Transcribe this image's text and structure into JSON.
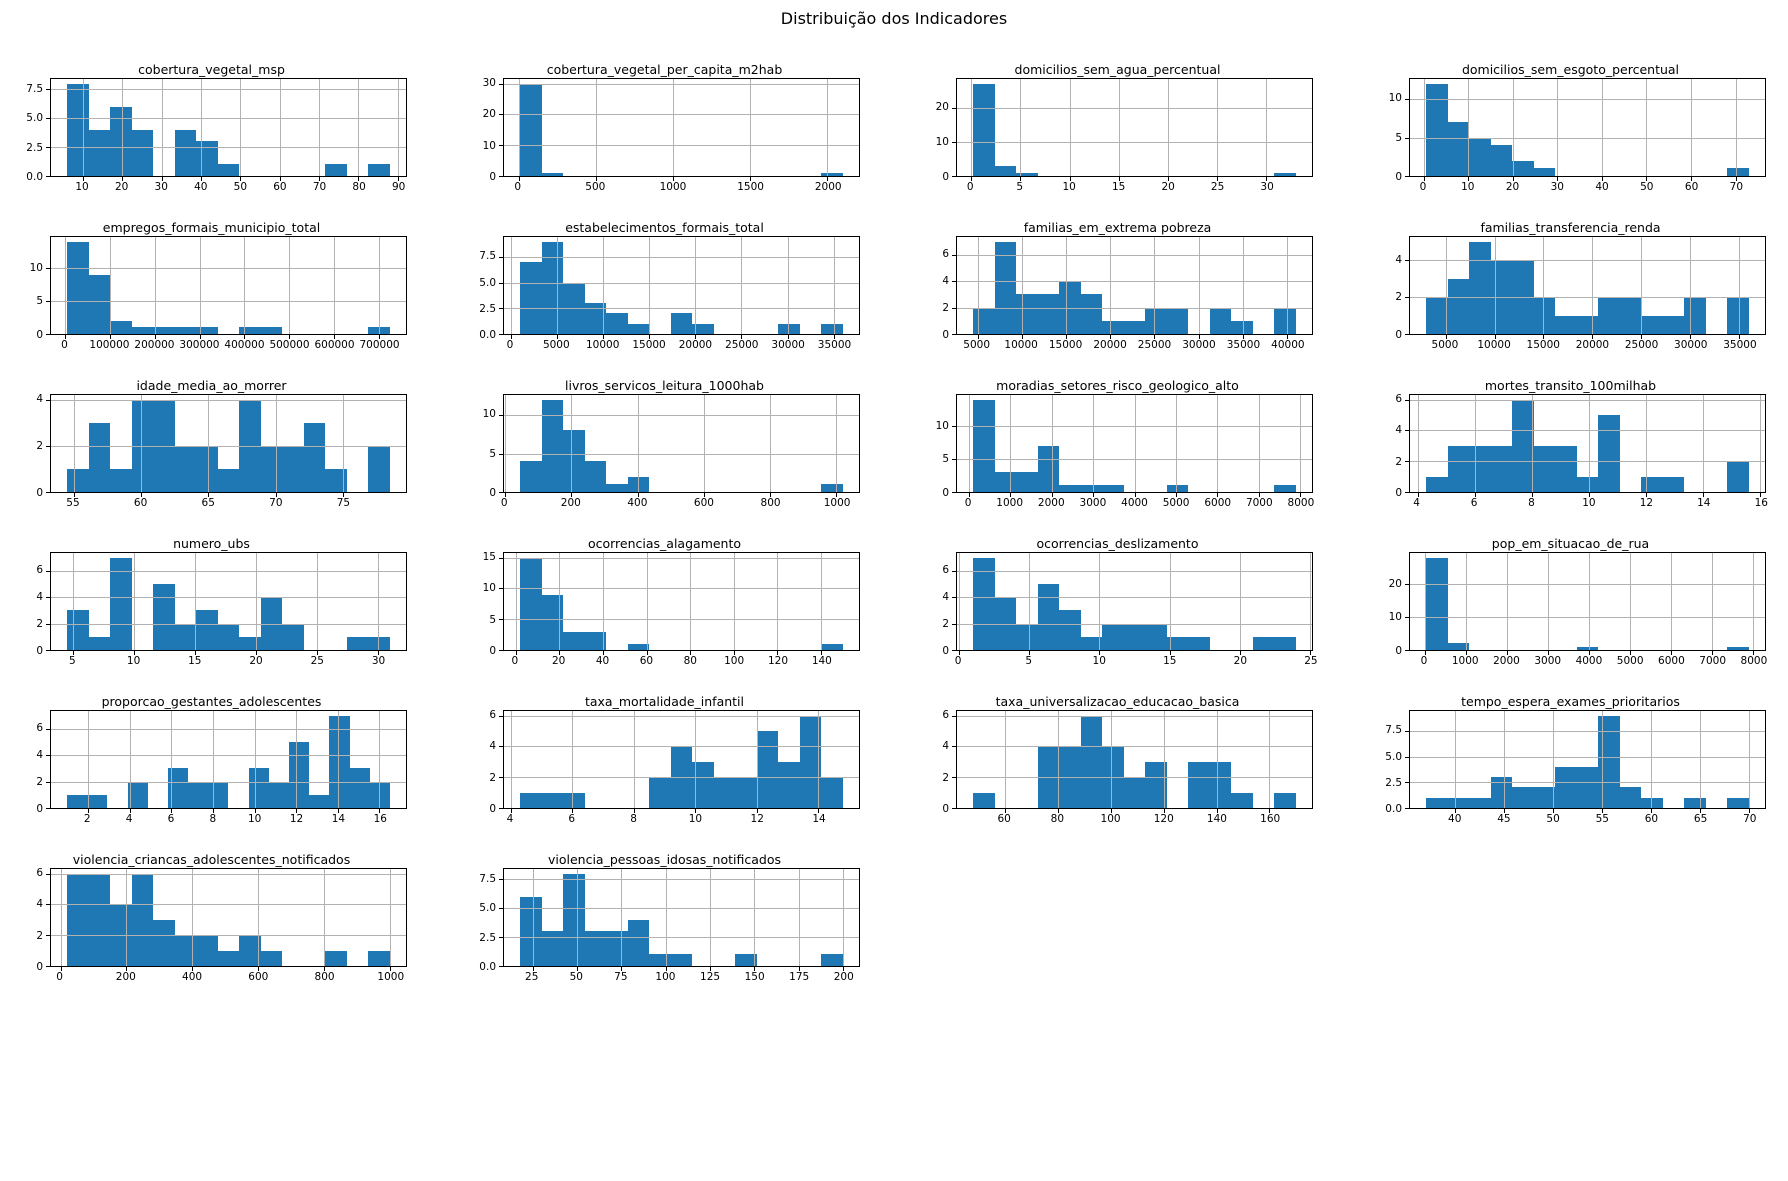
{
  "figure_title": "Distribuição dos Indicadores",
  "colors": {
    "bar": "#1f77b4",
    "grid": "#b2b2b2",
    "spine": "#000000",
    "background": "#ffffff"
  },
  "chart_data": [
    {
      "type": "bar",
      "subtype": "histogram",
      "title": "cobertura_vegetal_msp",
      "xrange": [
        6,
        88
      ],
      "xticks": [
        "10",
        "20",
        "30",
        "40",
        "50",
        "60",
        "70",
        "80",
        "90"
      ],
      "yticks": [
        "0.0",
        "2.5",
        "5.0",
        "7.5"
      ],
      "ymax": 8,
      "values": [
        8,
        4,
        6,
        4,
        0,
        4,
        3,
        1,
        0,
        0,
        0,
        0,
        1,
        0,
        1
      ]
    },
    {
      "type": "bar",
      "subtype": "histogram",
      "title": "cobertura_vegetal_per_capita_m2hab",
      "xrange": [
        10,
        2100
      ],
      "xticks": [
        "0",
        "500",
        "1000",
        "1500",
        "2000"
      ],
      "yticks": [
        "0",
        "10",
        "20",
        "30"
      ],
      "ymax": 30,
      "values": [
        30,
        1,
        0,
        0,
        0,
        0,
        0,
        0,
        0,
        0,
        0,
        0,
        0,
        0,
        1
      ]
    },
    {
      "type": "bar",
      "subtype": "histogram",
      "title": "domicilios_sem_agua_percentual",
      "xrange": [
        0.2,
        33
      ],
      "xticks": [
        "0",
        "5",
        "10",
        "15",
        "20",
        "25",
        "30"
      ],
      "yticks": [
        "0",
        "10",
        "20"
      ],
      "ymax": 27,
      "values": [
        27,
        3,
        1,
        0,
        0,
        0,
        0,
        0,
        0,
        0,
        0,
        0,
        0,
        0,
        1
      ]
    },
    {
      "type": "bar",
      "subtype": "histogram",
      "title": "domicilios_sem_esgoto_percentual",
      "xrange": [
        0.5,
        73
      ],
      "xticks": [
        "0",
        "10",
        "20",
        "30",
        "40",
        "50",
        "60",
        "70"
      ],
      "yticks": [
        "0",
        "5",
        "10"
      ],
      "ymax": 12,
      "values": [
        12,
        7,
        5,
        4,
        2,
        1,
        0,
        0,
        0,
        0,
        0,
        0,
        0,
        0,
        1
      ]
    },
    {
      "type": "bar",
      "subtype": "histogram",
      "title": "empregos_formais_municipio_total",
      "xrange": [
        4000,
        725000
      ],
      "xticks": [
        "0",
        "100000",
        "200000",
        "300000",
        "400000",
        "500000",
        "600000",
        "700000",
        "800000"
      ],
      "yticks": [
        "0",
        "5",
        "10"
      ],
      "ymax": 14,
      "values": [
        14,
        9,
        2,
        1,
        1,
        1,
        1,
        0,
        1,
        1,
        0,
        0,
        0,
        0,
        1
      ]
    },
    {
      "type": "bar",
      "subtype": "histogram",
      "title": "estabelecimentos_formais_total",
      "xrange": [
        1000,
        36000
      ],
      "xticks": [
        "0",
        "5000",
        "10000",
        "15000",
        "20000",
        "25000",
        "30000",
        "35000"
      ],
      "yticks": [
        "0.0",
        "2.5",
        "5.0",
        "7.5"
      ],
      "ymax": 9,
      "values": [
        7,
        9,
        5,
        3,
        2,
        1,
        0,
        2,
        1,
        0,
        0,
        0,
        1,
        0,
        1
      ]
    },
    {
      "type": "bar",
      "subtype": "histogram",
      "title": "familias_em_extrema pobreza",
      "xrange": [
        4500,
        41000
      ],
      "xticks": [
        "5000",
        "10000",
        "15000",
        "20000",
        "25000",
        "30000",
        "35000",
        "40000"
      ],
      "yticks": [
        "0",
        "2",
        "4",
        "6"
      ],
      "ymax": 7,
      "values": [
        2,
        7,
        3,
        3,
        4,
        3,
        1,
        1,
        2,
        2,
        0,
        2,
        1,
        0,
        2
      ]
    },
    {
      "type": "bar",
      "subtype": "histogram",
      "title": "familias_transferencia_renda",
      "xrange": [
        3000,
        36000
      ],
      "xticks": [
        "5000",
        "10000",
        "15000",
        "20000",
        "25000",
        "30000",
        "35000"
      ],
      "yticks": [
        "0",
        "2",
        "4"
      ],
      "ymax": 5,
      "values": [
        2,
        3,
        5,
        4,
        4,
        2,
        1,
        1,
        2,
        2,
        1,
        1,
        2,
        0,
        2
      ]
    },
    {
      "type": "bar",
      "subtype": "histogram",
      "title": "idade_media_ao_morrer",
      "xrange": [
        54.5,
        78.5
      ],
      "xticks": [
        "55",
        "60",
        "65",
        "70",
        "75"
      ],
      "yticks": [
        "0",
        "2",
        "4"
      ],
      "ymax": 4,
      "values": [
        1,
        3,
        1,
        4,
        4,
        2,
        2,
        1,
        4,
        2,
        2,
        3,
        1,
        0,
        2
      ]
    },
    {
      "type": "bar",
      "subtype": "histogram",
      "title": "livros_servicos_leitura_1000hab",
      "xrange": [
        45,
        1020
      ],
      "xticks": [
        "0",
        "200",
        "400",
        "600",
        "800",
        "1000"
      ],
      "yticks": [
        "0",
        "5",
        "10"
      ],
      "ymax": 12,
      "values": [
        4,
        12,
        8,
        4,
        1,
        2,
        0,
        0,
        0,
        0,
        0,
        0,
        0,
        0,
        1
      ]
    },
    {
      "type": "bar",
      "subtype": "histogram",
      "title": "moradias_setores_risco_geologico_alto",
      "xrange": [
        100,
        7900
      ],
      "xticks": [
        "0",
        "1000",
        "2000",
        "3000",
        "4000",
        "5000",
        "6000",
        "7000",
        "8000"
      ],
      "yticks": [
        "0",
        "5",
        "10"
      ],
      "ymax": 14,
      "values": [
        14,
        3,
        3,
        7,
        1,
        1,
        1,
        0,
        0,
        1,
        0,
        0,
        0,
        0,
        1
      ]
    },
    {
      "type": "bar",
      "subtype": "histogram",
      "title": "mortes_transito_100milhab",
      "xrange": [
        4.3,
        15.6
      ],
      "xticks": [
        "4",
        "6",
        "8",
        "10",
        "12",
        "14",
        "16"
      ],
      "yticks": [
        "0",
        "2",
        "4",
        "6"
      ],
      "ymax": 6,
      "values": [
        1,
        3,
        3,
        3,
        6,
        3,
        3,
        1,
        5,
        0,
        1,
        1,
        0,
        0,
        2
      ]
    },
    {
      "type": "bar",
      "subtype": "histogram",
      "title": "numero_ubs",
      "xrange": [
        4.5,
        31
      ],
      "xticks": [
        "5",
        "10",
        "15",
        "20",
        "25",
        "30"
      ],
      "yticks": [
        "0",
        "2",
        "4",
        "6"
      ],
      "ymax": 7,
      "values": [
        3,
        1,
        7,
        0,
        5,
        2,
        3,
        2,
        1,
        4,
        2,
        0,
        0,
        1,
        1
      ]
    },
    {
      "type": "bar",
      "subtype": "histogram",
      "title": "ocorrencias_alagamento",
      "xrange": [
        2,
        150
      ],
      "xticks": [
        "0",
        "20",
        "40",
        "60",
        "80",
        "100",
        "120",
        "140"
      ],
      "yticks": [
        "0",
        "5",
        "10",
        "15"
      ],
      "ymax": 15,
      "values": [
        15,
        9,
        3,
        3,
        0,
        1,
        0,
        0,
        0,
        0,
        0,
        0,
        0,
        0,
        1
      ]
    },
    {
      "type": "bar",
      "subtype": "histogram",
      "title": "ocorrencias_deslizamento",
      "xrange": [
        1,
        24
      ],
      "xticks": [
        "0",
        "5",
        "10",
        "15",
        "20",
        "25"
      ],
      "yticks": [
        "0",
        "2",
        "4",
        "6"
      ],
      "ymax": 7,
      "values": [
        7,
        4,
        2,
        5,
        3,
        1,
        2,
        2,
        2,
        1,
        1,
        0,
        0,
        1,
        1
      ]
    },
    {
      "type": "bar",
      "subtype": "histogram",
      "title": "pop_em_situacao_de_rua",
      "xrange": [
        30,
        7900
      ],
      "xticks": [
        "0",
        "1000",
        "2000",
        "3000",
        "4000",
        "5000",
        "6000",
        "7000",
        "8000"
      ],
      "yticks": [
        "0",
        "10",
        "20"
      ],
      "ymax": 28,
      "values": [
        28,
        2,
        0,
        0,
        0,
        0,
        0,
        1,
        0,
        0,
        0,
        0,
        0,
        0,
        1
      ]
    },
    {
      "type": "bar",
      "subtype": "histogram",
      "title": "proporcao_gestantes_adolescentes",
      "xrange": [
        1,
        16.5
      ],
      "xticks": [
        "2",
        "4",
        "6",
        "8",
        "10",
        "12",
        "14",
        "16"
      ],
      "yticks": [
        "0",
        "2",
        "4",
        "6"
      ],
      "ymax": 7,
      "values": [
        1,
        1,
        0,
        2,
        0,
        3,
        2,
        2,
        0,
        3,
        2,
        5,
        1,
        7,
        3,
        2
      ]
    },
    {
      "type": "bar",
      "subtype": "histogram",
      "title": "taxa_mortalidade_infantil",
      "xrange": [
        4.3,
        14.8
      ],
      "xticks": [
        "4",
        "6",
        "8",
        "10",
        "12",
        "14"
      ],
      "yticks": [
        "0",
        "2",
        "4",
        "6"
      ],
      "ymax": 6,
      "values": [
        1,
        1,
        1,
        0,
        0,
        0,
        2,
        4,
        3,
        2,
        2,
        5,
        3,
        6,
        2
      ]
    },
    {
      "type": "bar",
      "subtype": "histogram",
      "title": "taxa_universalizacao_educacao_basica",
      "xrange": [
        48,
        170
      ],
      "xticks": [
        "60",
        "80",
        "100",
        "120",
        "140",
        "160"
      ],
      "yticks": [
        "0",
        "2",
        "4",
        "6"
      ],
      "ymax": 6,
      "values": [
        1,
        0,
        0,
        4,
        4,
        6,
        4,
        2,
        3,
        0,
        3,
        3,
        1,
        0,
        1
      ]
    },
    {
      "type": "bar",
      "subtype": "histogram",
      "title": "tempo_espera_exames_prioritarios",
      "xrange": [
        37,
        70
      ],
      "xticks": [
        "40",
        "45",
        "50",
        "55",
        "60",
        "65",
        "70"
      ],
      "yticks": [
        "0.0",
        "2.5",
        "5.0",
        "7.5"
      ],
      "ymax": 9,
      "values": [
        1,
        1,
        1,
        3,
        2,
        2,
        4,
        4,
        9,
        2,
        1,
        0,
        1,
        0,
        1
      ]
    },
    {
      "type": "bar",
      "subtype": "histogram",
      "title": "violencia_criancas_adolescentes_notificados",
      "xrange": [
        20,
        1000
      ],
      "xticks": [
        "0",
        "200",
        "400",
        "600",
        "800",
        "1000"
      ],
      "yticks": [
        "0",
        "2",
        "4",
        "6"
      ],
      "ymax": 6,
      "values": [
        6,
        6,
        4,
        6,
        3,
        2,
        2,
        1,
        2,
        1,
        0,
        0,
        1,
        0,
        1
      ]
    },
    {
      "type": "bar",
      "subtype": "histogram",
      "title": "violencia_pessoas_idosas_notificados",
      "xrange": [
        18,
        200
      ],
      "xticks": [
        "25",
        "50",
        "75",
        "100",
        "125",
        "150",
        "175",
        "200"
      ],
      "yticks": [
        "0.0",
        "2.5",
        "5.0",
        "7.5"
      ],
      "ymax": 8,
      "values": [
        6,
        3,
        8,
        3,
        3,
        4,
        1,
        1,
        0,
        0,
        1,
        0,
        0,
        0,
        1
      ]
    }
  ]
}
